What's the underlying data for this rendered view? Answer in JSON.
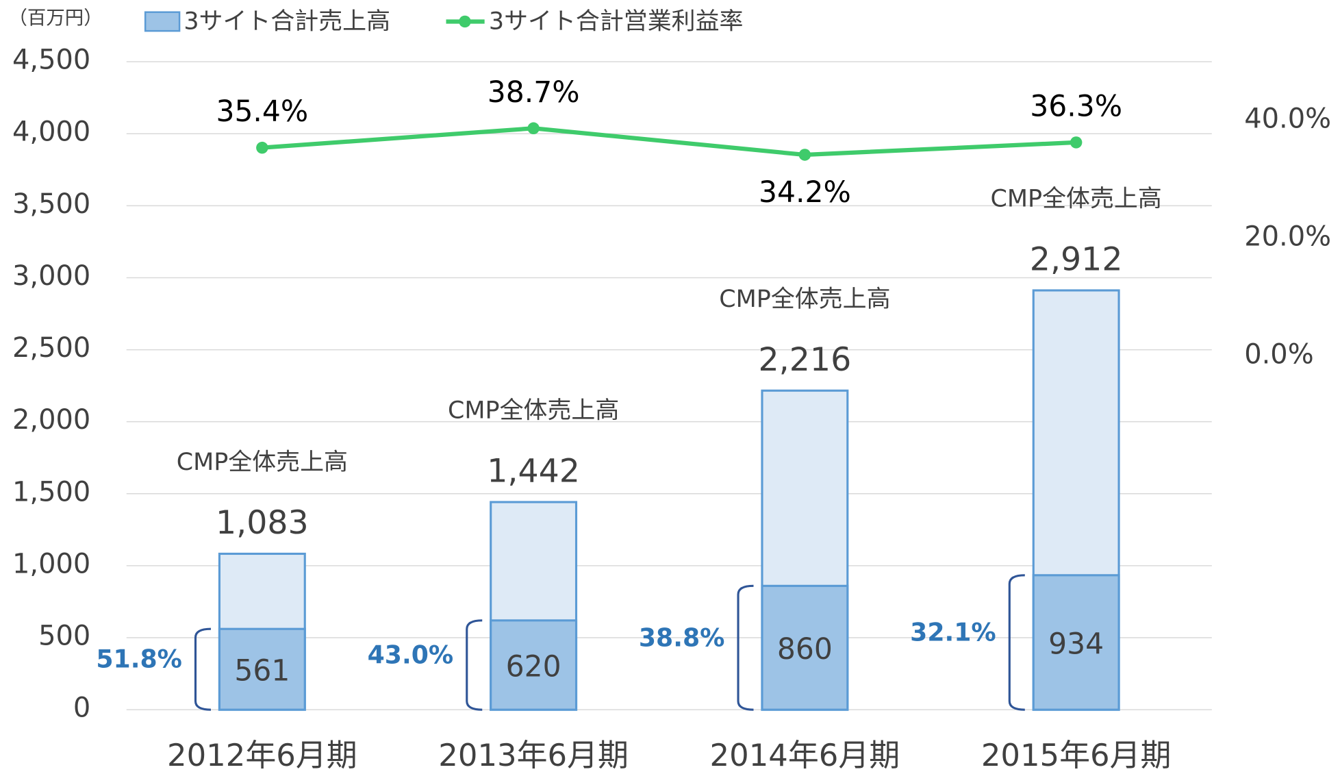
{
  "chart_data": {
    "type": "bar_line",
    "y_axis_label": "（百万円）",
    "categories": [
      "2012年6月期",
      "2013年6月期",
      "2014年6月期",
      "2015年6月期"
    ],
    "series": [
      {
        "name": "CMP全体売上高",
        "color": "#deeaf6",
        "values": [
          1083,
          1442,
          2216,
          2912
        ],
        "value_labels": [
          "1,083",
          "1,442",
          "2,216",
          "2,912"
        ]
      },
      {
        "name": "3サイト合計売上高",
        "color": "#9dc3e6",
        "values": [
          561,
          620,
          860,
          934
        ]
      },
      {
        "name": "3サイト合計営業利益率",
        "color": "#3fcb6b",
        "axis": "y2",
        "values": [
          35.4,
          38.7,
          34.2,
          36.3
        ],
        "value_labels": [
          "35.4%",
          "38.7%",
          "34.2%",
          "36.3%"
        ]
      }
    ],
    "share_of_total": {
      "values": [
        51.8,
        43.0,
        38.8,
        32.1
      ],
      "value_labels": [
        "51.8%",
        "43.0%",
        "38.8%",
        "32.1%"
      ]
    },
    "ylim": [
      0,
      4500
    ],
    "yticks": [
      0,
      500,
      {
        "value": 1000,
        "label": "1,000"
      },
      {
        "value": 1500,
        "label": "1,500"
      },
      {
        "value": 2000,
        "label": "2,000"
      },
      {
        "value": 2500,
        "label": "2,500"
      },
      {
        "value": 3000,
        "label": "3,000"
      },
      {
        "value": 3500,
        "label": "3,500"
      },
      {
        "value": 4000,
        "label": "4,000"
      },
      {
        "value": 4500,
        "label": "4,500"
      }
    ],
    "y2lim": [
      -60,
      50
    ],
    "y2ticks": [
      {
        "value": 0,
        "label": "0.0%"
      },
      {
        "value": 20,
        "label": "20.0%"
      },
      {
        "value": 40,
        "label": "40.0%"
      }
    ],
    "grid": true
  }
}
